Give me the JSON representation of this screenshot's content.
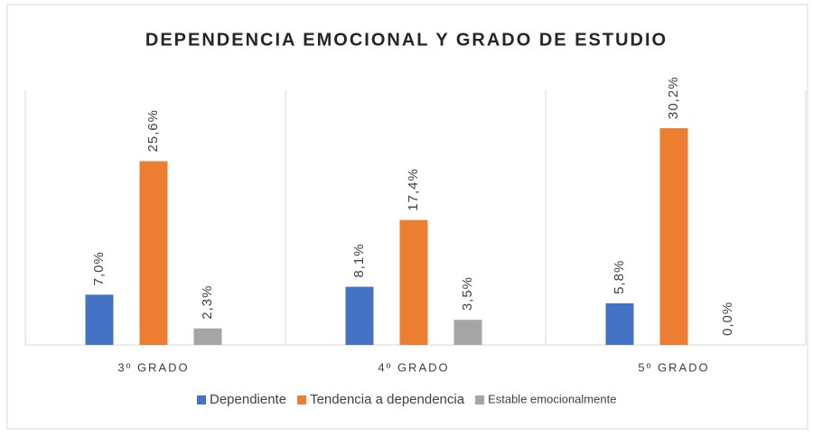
{
  "chart_data": {
    "type": "bar",
    "title": "DEPENDENCIA EMOCIONAL Y GRADO DE ESTUDIO",
    "categories": [
      "3º GRADO",
      "4º GRADO",
      "5º GRADO"
    ],
    "series": [
      {
        "name": "Dependiente",
        "color": "#4472c4",
        "values": [
          7.0,
          8.1,
          5.8
        ],
        "value_labels": [
          "7,0%",
          "8,1%",
          "5,8%"
        ]
      },
      {
        "name": "Tendencia a dependencia",
        "color": "#ed7d31",
        "values": [
          25.6,
          17.4,
          30.2
        ],
        "value_labels": [
          "25,6%",
          "17,4%",
          "30,2%"
        ]
      },
      {
        "name": "Estable emocionalmente",
        "color": "#a5a5a5",
        "values": [
          2.3,
          3.5,
          0.0
        ],
        "value_labels": [
          "2,3%",
          "3,5%",
          "0,0%"
        ]
      }
    ],
    "legend": "bottom"
  }
}
